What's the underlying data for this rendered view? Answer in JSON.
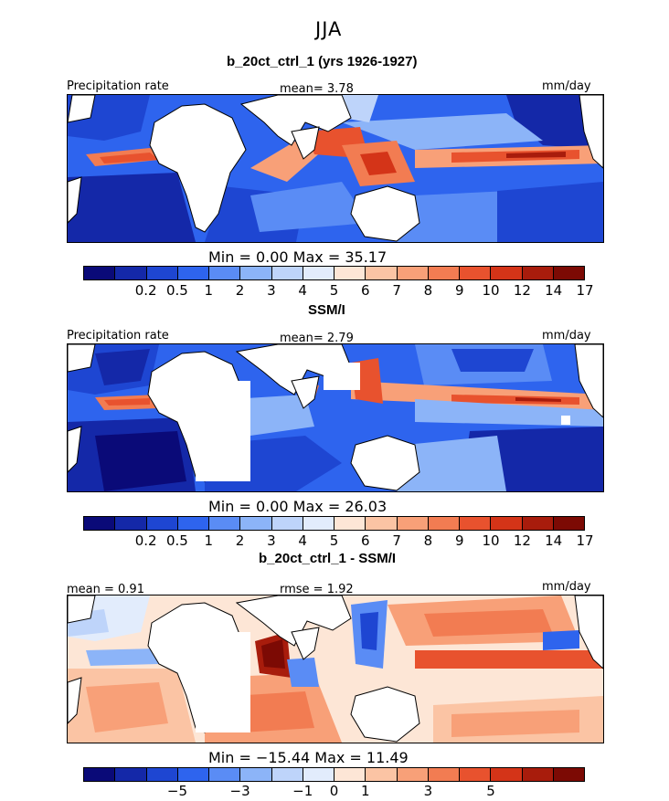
{
  "figure": {
    "title": "JJA"
  },
  "panels": [
    {
      "title": "b_20ct_ctrl_1 (yrs 1926-1927)",
      "left_label": "Precipitation rate",
      "center_label": "mean=   3.78",
      "right_label": "mm/day",
      "minmax": "Min =    0.00 Max =   35.17"
    },
    {
      "title": "SSM/I",
      "left_label": "Precipitation rate",
      "center_label": "mean=   2.79",
      "right_label": "mm/day",
      "minmax": "Min =    0.00 Max =   26.03"
    },
    {
      "title": "b_20ct_ctrl_1 - SSM/I",
      "left_label": "mean =   0.91",
      "center_label": "rmse =    1.92",
      "right_label": "mm/day",
      "minmax": "Min = −15.44 Max =   11.49"
    }
  ],
  "colorbar_abs": {
    "colors": [
      "#0a0a78",
      "#1428a8",
      "#1e46d2",
      "#2e64ee",
      "#5a8cf5",
      "#8cb4f8",
      "#bed4fa",
      "#e2ecfc",
      "#fde6d6",
      "#fbc4a4",
      "#f8a078",
      "#f27c52",
      "#e8522e",
      "#d43418",
      "#a81c0c",
      "#7c0a04"
    ],
    "ticks": [
      "0.2",
      "0.5",
      "1",
      "2",
      "3",
      "4",
      "5",
      "6",
      "7",
      "8",
      "9",
      "10",
      "12",
      "14",
      "17"
    ]
  },
  "colorbar_diff": {
    "colors": [
      "#0a0a78",
      "#1428a8",
      "#1e46d2",
      "#2e64ee",
      "#5a8cf5",
      "#8cb4f8",
      "#bed4fa",
      "#e2ecfc",
      "#fde6d6",
      "#fbc4a4",
      "#f8a078",
      "#f27c52",
      "#e8522e",
      "#d43418",
      "#a81c0c",
      "#7c0a04"
    ],
    "ticks": [
      "−5",
      "−3",
      "−1",
      "0",
      "1",
      "3",
      "5"
    ]
  }
}
